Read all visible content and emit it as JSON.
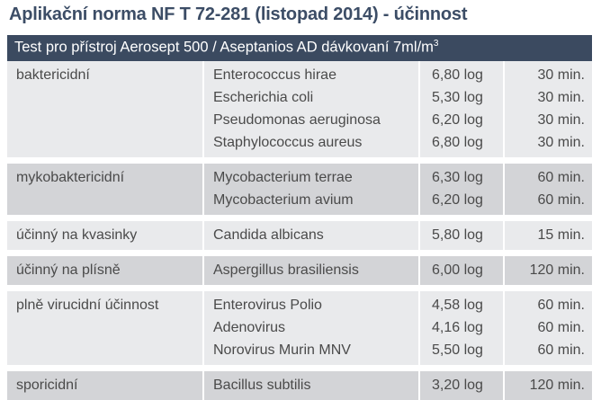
{
  "title": "Aplikační norma NF T 72-281 (listopad 2014) - účinnost",
  "header": {
    "text": "Test pro přístroj Aerosept 500 / Aseptanios AD dávkovaní 7ml/m",
    "superscript": "3"
  },
  "rows": [
    {
      "category": "baktericidní",
      "organisms": [
        "Enterococcus hirae",
        "Escherichia coli",
        "Pseudomonas aeruginosa",
        "Staphylococcus aureus"
      ],
      "logs": [
        "6,80 log",
        "5,30 log",
        "6,20 log",
        "6,80 log"
      ],
      "times": [
        "30 min.",
        "30 min.",
        "30 min.",
        "30 min."
      ]
    },
    {
      "category": "mykobaktericidní",
      "organisms": [
        "Mycobacterium terrae",
        "Mycobacterium avium"
      ],
      "logs": [
        "6,30 log",
        "6,20 log"
      ],
      "times": [
        "60 min.",
        "60 min."
      ]
    },
    {
      "category": "účinný na kvasinky",
      "organisms": [
        "Candida albicans"
      ],
      "logs": [
        "5,80 log"
      ],
      "times": [
        "15 min."
      ]
    },
    {
      "category": "účinný na plísně",
      "organisms": [
        "Aspergillus brasiliensis"
      ],
      "logs": [
        "6,00 log"
      ],
      "times": [
        "120 min."
      ]
    },
    {
      "category": "plně virucidní účinnost",
      "organisms": [
        "Enterovirus Polio",
        "Adenovirus",
        "Norovirus Murin MNV"
      ],
      "logs": [
        "4,58 log",
        "4,16 log",
        "5,50 log"
      ],
      "times": [
        "60 min.",
        "60 min.",
        "60 min."
      ]
    },
    {
      "category": "sporicidní",
      "organisms": [
        "Bacillus subtilis"
      ],
      "logs": [
        "3,20 log"
      ],
      "times": [
        "120 min."
      ]
    }
  ]
}
